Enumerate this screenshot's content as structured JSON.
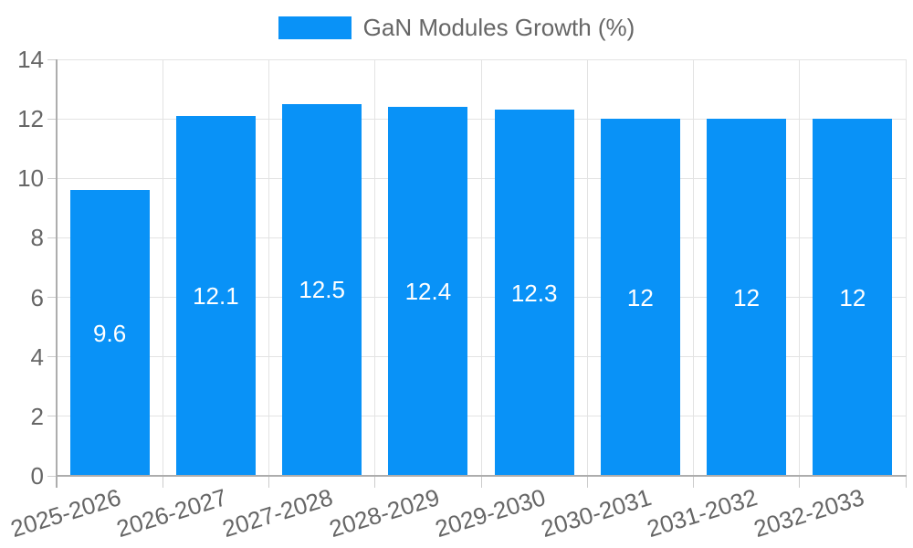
{
  "chart_data": {
    "type": "bar",
    "title": "GaN Modules Growth (%)",
    "categories": [
      "2025-2026",
      "2026-2027",
      "2027-2028",
      "2028-2029",
      "2029-2030",
      "2030-2031",
      "2031-2032",
      "2032-2033"
    ],
    "values": [
      9.6,
      12.1,
      12.5,
      12.4,
      12.3,
      12,
      12,
      12
    ],
    "bar_value_labels": [
      "9.6",
      "12.1",
      "12.5",
      "12.4",
      "12.3",
      "12",
      "12",
      "12"
    ],
    "yticks": [
      0,
      2,
      4,
      6,
      8,
      10,
      12,
      14
    ],
    "ylim": [
      0,
      14
    ],
    "xlabel": "",
    "ylabel": "",
    "legend_position": "top",
    "grid": "on",
    "x_label_rotation_deg": -17,
    "colors": {
      "bar": "#0992f7",
      "bar_label": "#ffffff",
      "axis_text": "#666666",
      "gridline": "#e3e3e3",
      "axis_line": "#adadad",
      "tick_mark": "#cccccc",
      "background": "#ffffff"
    }
  }
}
